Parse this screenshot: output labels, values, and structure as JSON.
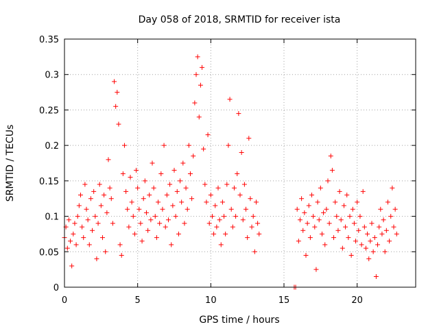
{
  "chart_data": {
    "type": "scatter",
    "title": "Day 058 of 2018, SRMTID for receiver ista",
    "xlabel": "GPS time / hours",
    "ylabel": "SRMTID / TECUs",
    "xlim": [
      0,
      24
    ],
    "ylim": [
      0,
      0.35
    ],
    "xticks": [
      0,
      5,
      10,
      15,
      20
    ],
    "xtick_labels": [
      "0",
      "5",
      "10",
      "15",
      "20"
    ],
    "yticks": [
      0,
      0.05,
      0.1,
      0.15,
      0.2,
      0.25,
      0.3,
      0.35
    ],
    "ytick_labels": [
      "0",
      "0.05",
      "0.1",
      "0.15",
      "0.2",
      "0.25",
      "0.3",
      "0.35"
    ],
    "grid": true,
    "marker": "+",
    "color": "#ff0000",
    "points": [
      [
        0.0,
        0.07
      ],
      [
        0.1,
        0.085
      ],
      [
        0.2,
        0.055
      ],
      [
        0.3,
        0.095
      ],
      [
        0.4,
        0.065
      ],
      [
        0.5,
        0.03
      ],
      [
        0.6,
        0.075
      ],
      [
        0.7,
        0.09
      ],
      [
        0.8,
        0.06
      ],
      [
        0.9,
        0.1
      ],
      [
        1.0,
        0.115
      ],
      [
        1.1,
        0.13
      ],
      [
        1.2,
        0.085
      ],
      [
        1.3,
        0.07
      ],
      [
        1.4,
        0.145
      ],
      [
        1.5,
        0.11
      ],
      [
        1.6,
        0.095
      ],
      [
        1.7,
        0.06
      ],
      [
        1.8,
        0.125
      ],
      [
        1.9,
        0.08
      ],
      [
        2.0,
        0.135
      ],
      [
        2.1,
        0.1
      ],
      [
        2.2,
        0.04
      ],
      [
        2.3,
        0.09
      ],
      [
        2.4,
        0.145
      ],
      [
        2.5,
        0.115
      ],
      [
        2.6,
        0.07
      ],
      [
        2.7,
        0.13
      ],
      [
        2.8,
        0.05
      ],
      [
        2.9,
        0.105
      ],
      [
        3.0,
        0.18
      ],
      [
        3.1,
        0.14
      ],
      [
        3.2,
        0.125
      ],
      [
        3.3,
        0.09
      ],
      [
        3.4,
        0.29
      ],
      [
        3.5,
        0.255
      ],
      [
        3.6,
        0.275
      ],
      [
        3.7,
        0.23
      ],
      [
        3.8,
        0.06
      ],
      [
        3.9,
        0.045
      ],
      [
        4.0,
        0.16
      ],
      [
        4.1,
        0.2
      ],
      [
        4.2,
        0.135
      ],
      [
        4.3,
        0.11
      ],
      [
        4.4,
        0.085
      ],
      [
        4.5,
        0.155
      ],
      [
        4.6,
        0.12
      ],
      [
        4.7,
        0.1
      ],
      [
        4.8,
        0.075
      ],
      [
        4.9,
        0.165
      ],
      [
        5.0,
        0.14
      ],
      [
        5.1,
        0.11
      ],
      [
        5.2,
        0.09
      ],
      [
        5.3,
        0.065
      ],
      [
        5.4,
        0.125
      ],
      [
        5.5,
        0.15
      ],
      [
        5.6,
        0.105
      ],
      [
        5.7,
        0.08
      ],
      [
        5.8,
        0.13
      ],
      [
        5.9,
        0.095
      ],
      [
        6.0,
        0.175
      ],
      [
        6.1,
        0.14
      ],
      [
        6.2,
        0.1
      ],
      [
        6.3,
        0.07
      ],
      [
        6.4,
        0.12
      ],
      [
        6.5,
        0.09
      ],
      [
        6.6,
        0.16
      ],
      [
        6.7,
        0.11
      ],
      [
        6.8,
        0.2
      ],
      [
        6.9,
        0.085
      ],
      [
        7.0,
        0.13
      ],
      [
        7.1,
        0.095
      ],
      [
        7.2,
        0.145
      ],
      [
        7.3,
        0.06
      ],
      [
        7.4,
        0.115
      ],
      [
        7.5,
        0.165
      ],
      [
        7.6,
        0.1
      ],
      [
        7.7,
        0.135
      ],
      [
        7.8,
        0.075
      ],
      [
        7.9,
        0.15
      ],
      [
        8.0,
        0.12
      ],
      [
        8.1,
        0.175
      ],
      [
        8.2,
        0.09
      ],
      [
        8.3,
        0.14
      ],
      [
        8.4,
        0.11
      ],
      [
        8.5,
        0.2
      ],
      [
        8.6,
        0.16
      ],
      [
        8.7,
        0.125
      ],
      [
        8.8,
        0.185
      ],
      [
        8.9,
        0.26
      ],
      [
        9.0,
        0.3
      ],
      [
        9.1,
        0.325
      ],
      [
        9.2,
        0.24
      ],
      [
        9.3,
        0.285
      ],
      [
        9.4,
        0.31
      ],
      [
        9.5,
        0.195
      ],
      [
        9.6,
        0.145
      ],
      [
        9.7,
        0.12
      ],
      [
        9.8,
        0.215
      ],
      [
        9.9,
        0.09
      ],
      [
        10.0,
        0.13
      ],
      [
        10.1,
        0.1
      ],
      [
        10.2,
        0.075
      ],
      [
        10.3,
        0.115
      ],
      [
        10.4,
        0.085
      ],
      [
        10.5,
        0.14
      ],
      [
        10.6,
        0.095
      ],
      [
        10.7,
        0.06
      ],
      [
        10.8,
        0.12
      ],
      [
        10.9,
        0.1
      ],
      [
        11.0,
        0.075
      ],
      [
        11.1,
        0.145
      ],
      [
        11.2,
        0.2
      ],
      [
        11.3,
        0.265
      ],
      [
        11.4,
        0.11
      ],
      [
        11.5,
        0.085
      ],
      [
        11.6,
        0.14
      ],
      [
        11.7,
        0.1
      ],
      [
        11.8,
        0.16
      ],
      [
        11.9,
        0.245
      ],
      [
        12.0,
        0.13
      ],
      [
        12.1,
        0.19
      ],
      [
        12.2,
        0.095
      ],
      [
        12.3,
        0.145
      ],
      [
        12.4,
        0.11
      ],
      [
        12.5,
        0.07
      ],
      [
        12.6,
        0.21
      ],
      [
        12.7,
        0.125
      ],
      [
        12.8,
        0.085
      ],
      [
        12.9,
        0.1
      ],
      [
        13.0,
        0.05
      ],
      [
        13.1,
        0.12
      ],
      [
        13.2,
        0.09
      ],
      [
        13.3,
        0.075
      ],
      [
        15.7,
        0.0
      ],
      [
        15.8,
        0.0
      ],
      [
        15.9,
        0.11
      ],
      [
        16.0,
        0.065
      ],
      [
        16.1,
        0.095
      ],
      [
        16.2,
        0.125
      ],
      [
        16.3,
        0.08
      ],
      [
        16.4,
        0.105
      ],
      [
        16.5,
        0.045
      ],
      [
        16.6,
        0.09
      ],
      [
        16.7,
        0.115
      ],
      [
        16.8,
        0.07
      ],
      [
        16.9,
        0.13
      ],
      [
        17.0,
        0.1
      ],
      [
        17.1,
        0.085
      ],
      [
        17.2,
        0.025
      ],
      [
        17.3,
        0.12
      ],
      [
        17.4,
        0.095
      ],
      [
        17.5,
        0.14
      ],
      [
        17.6,
        0.075
      ],
      [
        17.7,
        0.105
      ],
      [
        17.8,
        0.06
      ],
      [
        17.9,
        0.11
      ],
      [
        18.0,
        0.15
      ],
      [
        18.1,
        0.09
      ],
      [
        18.2,
        0.185
      ],
      [
        18.3,
        0.165
      ],
      [
        18.4,
        0.07
      ],
      [
        18.5,
        0.12
      ],
      [
        18.6,
        0.1
      ],
      [
        18.7,
        0.08
      ],
      [
        18.8,
        0.135
      ],
      [
        18.9,
        0.095
      ],
      [
        19.0,
        0.055
      ],
      [
        19.1,
        0.115
      ],
      [
        19.2,
        0.085
      ],
      [
        19.3,
        0.13
      ],
      [
        19.4,
        0.07
      ],
      [
        19.5,
        0.1
      ],
      [
        19.6,
        0.045
      ],
      [
        19.7,
        0.11
      ],
      [
        19.8,
        0.09
      ],
      [
        19.9,
        0.065
      ],
      [
        20.0,
        0.12
      ],
      [
        20.1,
        0.08
      ],
      [
        20.2,
        0.1
      ],
      [
        20.3,
        0.06
      ],
      [
        20.4,
        0.135
      ],
      [
        20.5,
        0.085
      ],
      [
        20.6,
        0.055
      ],
      [
        20.7,
        0.075
      ],
      [
        20.8,
        0.04
      ],
      [
        20.9,
        0.065
      ],
      [
        21.0,
        0.09
      ],
      [
        21.1,
        0.05
      ],
      [
        21.2,
        0.07
      ],
      [
        21.3,
        0.015
      ],
      [
        21.4,
        0.06
      ],
      [
        21.5,
        0.085
      ],
      [
        21.6,
        0.11
      ],
      [
        21.7,
        0.075
      ],
      [
        21.8,
        0.095
      ],
      [
        21.9,
        0.05
      ],
      [
        22.0,
        0.08
      ],
      [
        22.1,
        0.12
      ],
      [
        22.2,
        0.065
      ],
      [
        22.3,
        0.1
      ],
      [
        22.4,
        0.14
      ],
      [
        22.5,
        0.085
      ],
      [
        22.6,
        0.11
      ],
      [
        22.7,
        0.075
      ]
    ]
  }
}
